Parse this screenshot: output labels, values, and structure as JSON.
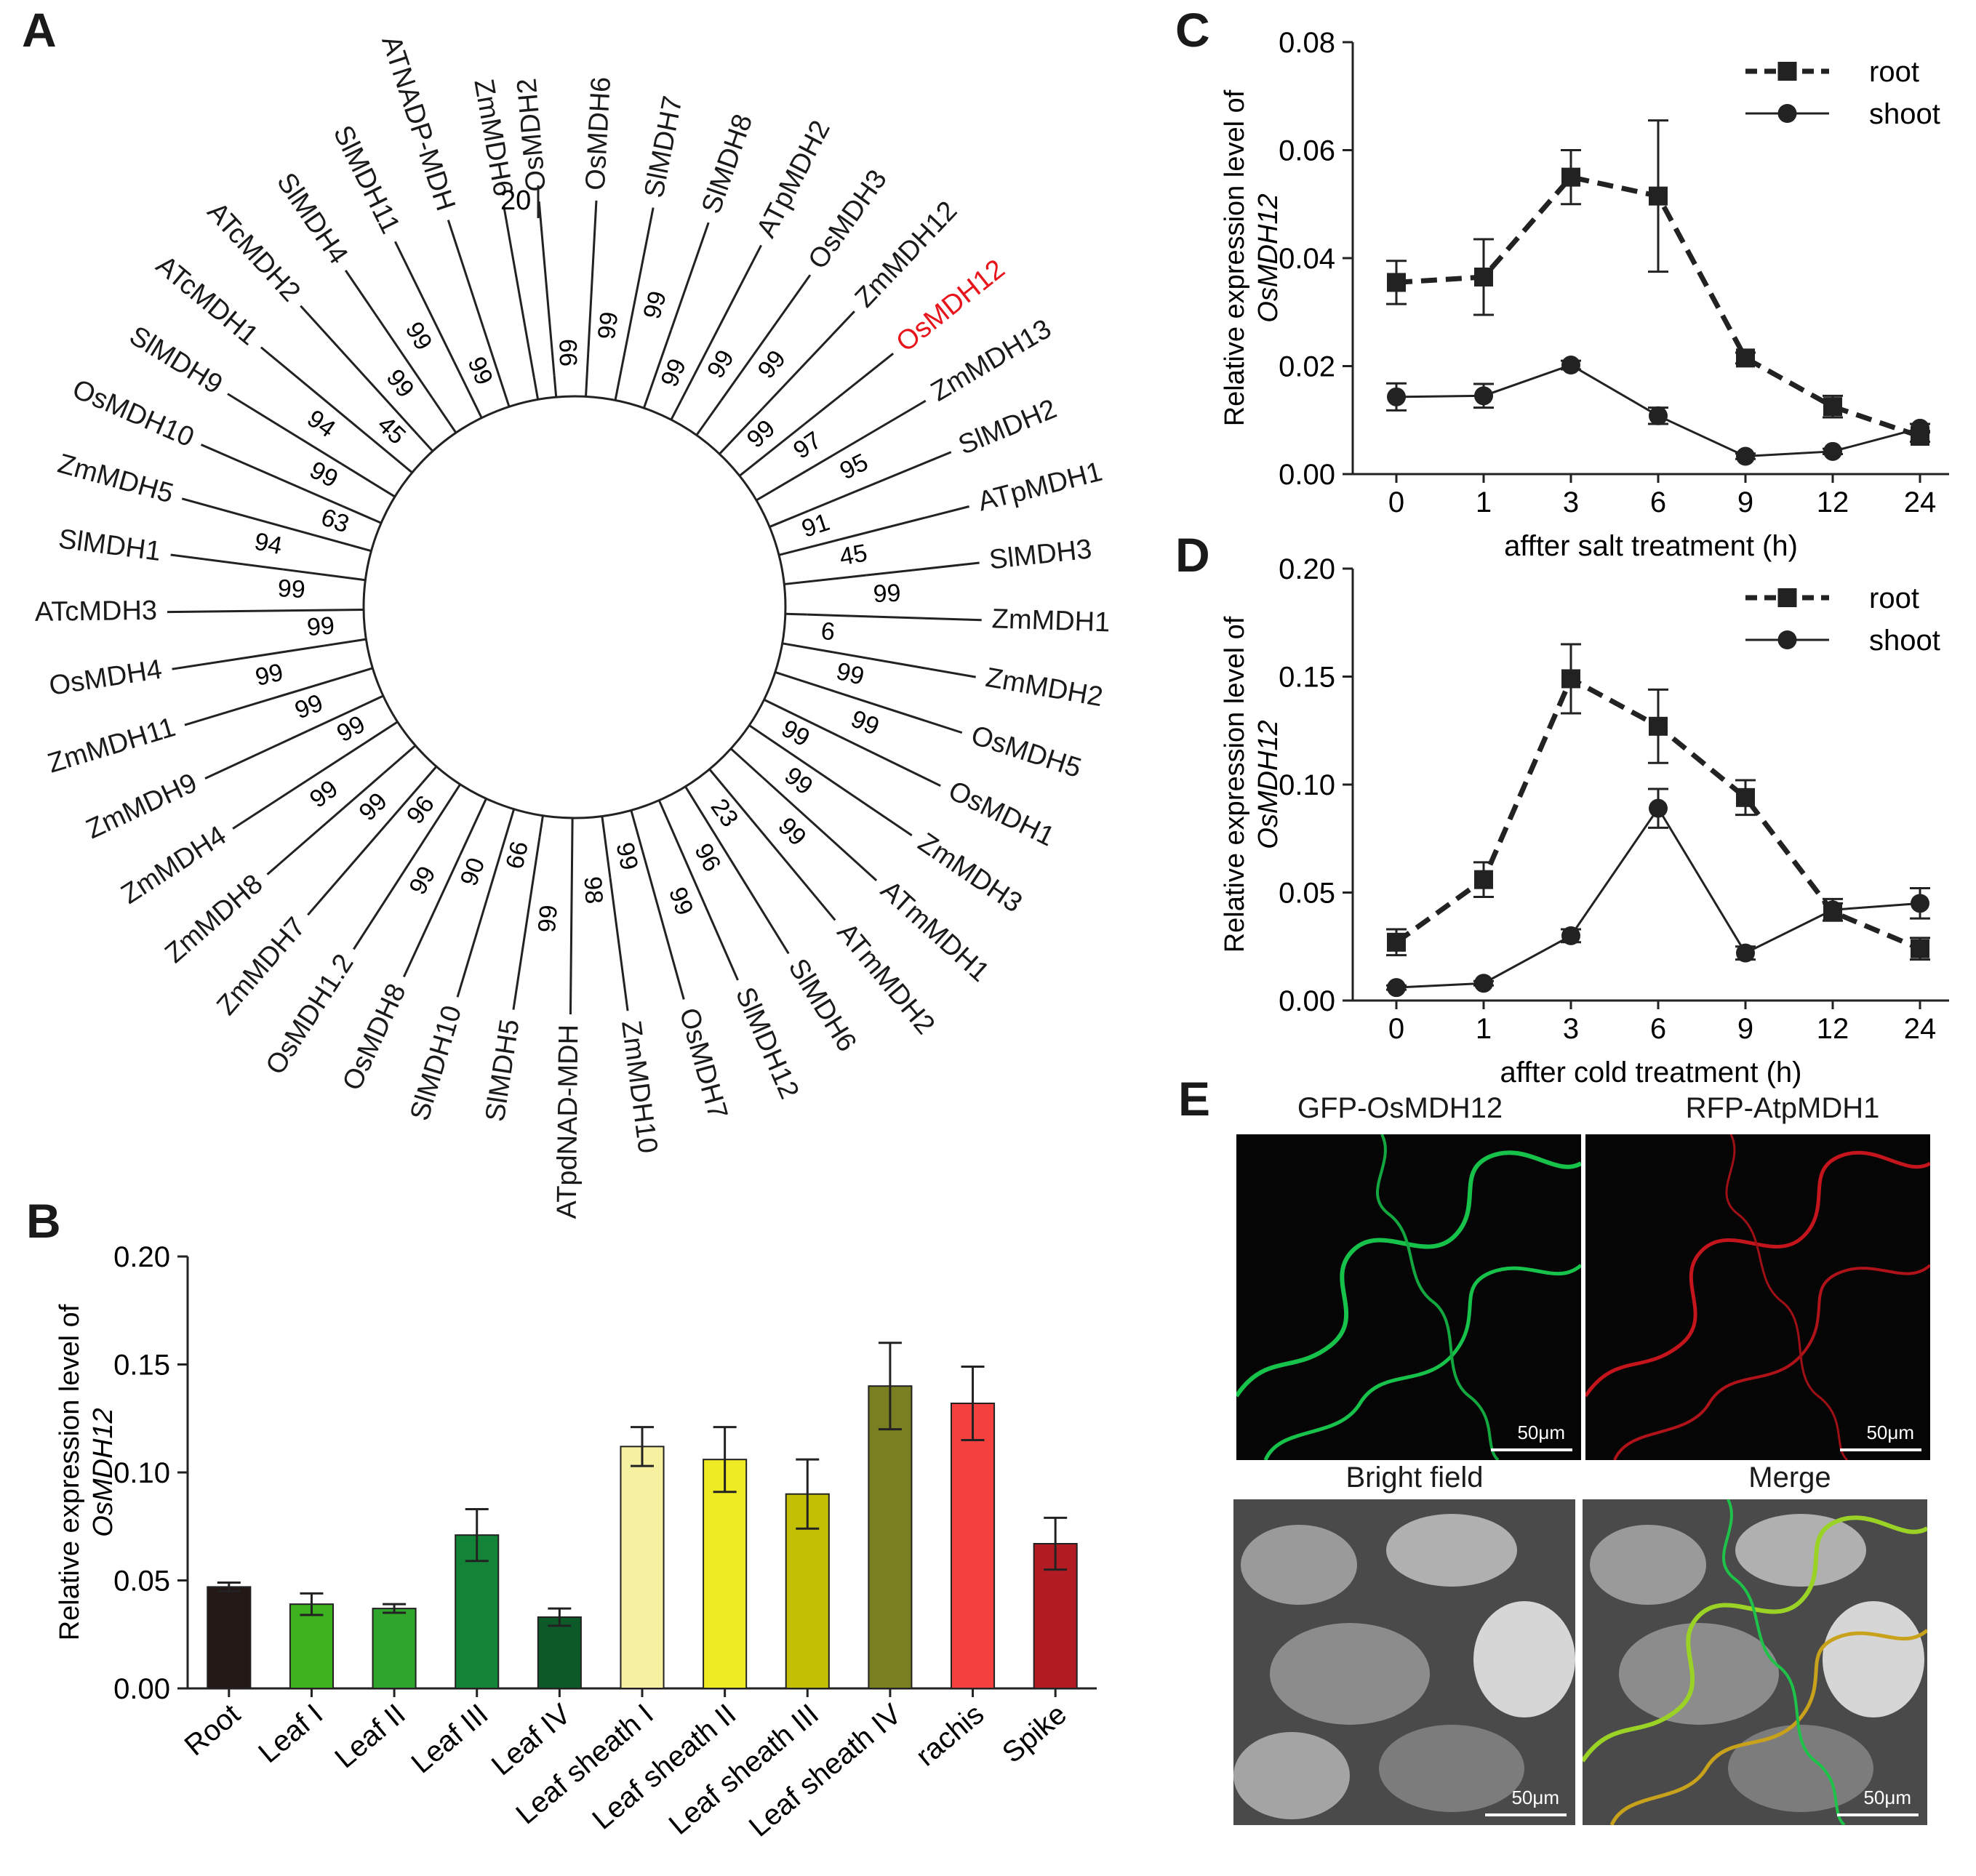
{
  "panels": {
    "a": "A",
    "b": "B",
    "c": "C",
    "d": "D",
    "e": "E"
  },
  "tree": {
    "scale_label": "20",
    "highlight_color": "#e8141c",
    "leaves": [
      {
        "name": "OsMDH2"
      },
      {
        "name": "OsMDH6"
      },
      {
        "name": "SlMDH7"
      },
      {
        "name": "SlMDH8"
      },
      {
        "name": "ATpMDH2"
      },
      {
        "name": "OsMDH3"
      },
      {
        "name": "ZmMDH12"
      },
      {
        "name": "OsMDH12",
        "highlight": true
      },
      {
        "name": "ZmMDH13"
      },
      {
        "name": "SlMDH2"
      },
      {
        "name": "ATpMDH1"
      },
      {
        "name": "SlMDH3"
      },
      {
        "name": "ZmMDH1"
      },
      {
        "name": "ZmMDH2"
      },
      {
        "name": "OsMDH5"
      },
      {
        "name": "OsMDH1"
      },
      {
        "name": "ZmMDH3"
      },
      {
        "name": "ATmMDH1"
      },
      {
        "name": "ATmMDH2"
      },
      {
        "name": "SlMDH6"
      },
      {
        "name": "SlMDH12"
      },
      {
        "name": "OsMDH7"
      },
      {
        "name": "ZmMDH10"
      },
      {
        "name": "ATpdNAD-MDH"
      },
      {
        "name": "SlMDH5"
      },
      {
        "name": "SlMDH10"
      },
      {
        "name": "OsMDH8"
      },
      {
        "name": "OsMDH1.2"
      },
      {
        "name": "ZmMDH7"
      },
      {
        "name": "ZmMDH8"
      },
      {
        "name": "ZmMDH4"
      },
      {
        "name": "ZmMDH9"
      },
      {
        "name": "ZmMDH11"
      },
      {
        "name": "OsMDH4"
      },
      {
        "name": "ATcMDH3"
      },
      {
        "name": "SlMDH1"
      },
      {
        "name": "ZmMDH5"
      },
      {
        "name": "OsMDH10"
      },
      {
        "name": "SlMDH9"
      },
      {
        "name": "ATcMDH1"
      },
      {
        "name": "ATcMDH2"
      },
      {
        "name": "SlMDH4"
      },
      {
        "name": "SlMDH11"
      },
      {
        "name": "ATNADP-MDH"
      },
      {
        "name": "ZmMDH6"
      }
    ],
    "bootstrap": [
      "99",
      "99",
      "99",
      "99",
      "99",
      "99",
      "99",
      "97",
      "95",
      "91",
      "45",
      "99",
      "6",
      "99",
      "99",
      "99",
      "99",
      "99",
      "23",
      "96",
      "99",
      "99",
      "98",
      "99",
      "66",
      "90",
      "99",
      "96",
      "99",
      "99",
      "99",
      "99",
      "99",
      "99",
      "99",
      "94",
      "63",
      "99",
      "94",
      "45",
      "99",
      "99",
      "99"
    ]
  },
  "chart_data": [
    {
      "panel": "B",
      "type": "bar",
      "ylabel": "Relative expression level of",
      "ylabel_italic": "OsMDH12",
      "ylim": [
        0,
        0.2
      ],
      "yticks": [
        "0.00",
        "0.05",
        "0.10",
        "0.15",
        "0.20"
      ],
      "categories": [
        "Root",
        "Leaf I",
        "Leaf II",
        "Leaf III",
        "Leaf IV",
        "Leaf sheath I",
        "Leaf sheath II",
        "Leaf sheath III",
        "Leaf sheath IV",
        "rachis",
        "Spike"
      ],
      "values": [
        0.047,
        0.039,
        0.037,
        0.071,
        0.033,
        0.112,
        0.106,
        0.09,
        0.14,
        0.132,
        0.067
      ],
      "errors": [
        0.002,
        0.005,
        0.002,
        0.012,
        0.004,
        0.009,
        0.015,
        0.016,
        0.02,
        0.017,
        0.012
      ],
      "colors": [
        "#231815",
        "#3cb21e",
        "#2fa62b",
        "#138437",
        "#0b5a28",
        "#f6f1a0",
        "#eeea23",
        "#c3bf05",
        "#7a7f22",
        "#f5413d",
        "#b31b23"
      ]
    },
    {
      "panel": "C",
      "type": "line",
      "xlabel": "affter salt treatment (h)",
      "ylabel": "Relative expression level of",
      "ylabel_italic": "OsMDH12",
      "ylim": [
        0,
        0.08
      ],
      "yticks": [
        "0.00",
        "0.02",
        "0.04",
        "0.06",
        "0.08"
      ],
      "categories": [
        "0",
        "1",
        "3",
        "6",
        "9",
        "12",
        "24"
      ],
      "legend_position": "top-right",
      "series": [
        {
          "name": "root",
          "style": "dashed-square",
          "values": [
            0.0355,
            0.0365,
            0.055,
            0.0515,
            0.0215,
            0.0125,
            0.007
          ],
          "errors": [
            0.004,
            0.007,
            0.005,
            0.014,
            0.001,
            0.002,
            0.001
          ]
        },
        {
          "name": "shoot",
          "style": "solid-circle",
          "values": [
            0.0143,
            0.0145,
            0.0202,
            0.0108,
            0.0033,
            0.0042,
            0.0085
          ],
          "errors": [
            0.0025,
            0.0022,
            0.0008,
            0.0015,
            0.0005,
            0.0005,
            0.0008
          ]
        }
      ]
    },
    {
      "panel": "D",
      "type": "line",
      "xlabel": "affter cold treatment (h)",
      "ylabel": "Relative expression level of",
      "ylabel_italic": "OsMDH12",
      "ylim": [
        0,
        0.2
      ],
      "yticks": [
        "0.00",
        "0.05",
        "0.10",
        "0.15",
        "0.20"
      ],
      "categories": [
        "0",
        "1",
        "3",
        "6",
        "9",
        "12",
        "24"
      ],
      "legend_position": "top-right",
      "series": [
        {
          "name": "root",
          "style": "dashed-square",
          "values": [
            0.027,
            0.056,
            0.149,
            0.127,
            0.094,
            0.041,
            0.024
          ],
          "errors": [
            0.006,
            0.008,
            0.016,
            0.017,
            0.008,
            0.004,
            0.005
          ]
        },
        {
          "name": "shoot",
          "style": "solid-circle",
          "values": [
            0.006,
            0.008,
            0.03,
            0.089,
            0.022,
            0.042,
            0.045
          ],
          "errors": [
            0.001,
            0.001,
            0.003,
            0.009,
            0.003,
            0.005,
            0.007
          ]
        }
      ]
    }
  ],
  "micrographs": [
    {
      "title": "GFP-OsMDH12",
      "scale": "50μm",
      "channel": "green"
    },
    {
      "title": "RFP-AtpMDH1",
      "scale": "50μm",
      "channel": "red"
    },
    {
      "title": "Bright field",
      "scale": "50μm",
      "channel": "gray"
    },
    {
      "title": "Merge",
      "scale": "50μm",
      "channel": "merge"
    }
  ]
}
